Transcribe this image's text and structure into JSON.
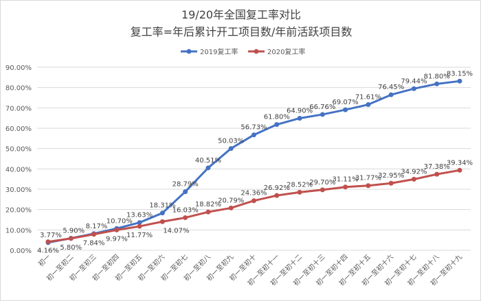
{
  "chart_data": {
    "type": "line",
    "title": "19/20年全国复工率对比",
    "subtitle": "复工率=年后累计开工项目数/年前活跃项目数",
    "xlabel": "",
    "ylabel": "",
    "ylim": [
      0,
      90
    ],
    "yticks": [
      "0.00%",
      "10.00%",
      "20.00%",
      "30.00%",
      "40.00%",
      "50.00%",
      "60.00%",
      "70.00%",
      "80.00%",
      "90.00%"
    ],
    "grid": true,
    "legend_position": "top",
    "categories": [
      "初一",
      "初一至初二",
      "初一至初三",
      "初一至初四",
      "初一至初五",
      "初一至初六",
      "初一至初七",
      "初一至初八",
      "初一至初九",
      "初一至初十",
      "初一至初十一",
      "初一至初十二",
      "初一至初十三",
      "初一至初十四",
      "初一至初十五",
      "初一至初十六",
      "初一至初十七",
      "初一至初十八",
      "初一至初十九"
    ],
    "series": [
      {
        "name": "2019复工率",
        "color": "#4472C4",
        "values": [
          3.77,
          5.9,
          8.17,
          10.7,
          13.63,
          18.31,
          28.79,
          40.51,
          50.03,
          56.73,
          61.8,
          64.9,
          66.76,
          69.07,
          71.61,
          76.45,
          79.44,
          81.8,
          83.15
        ]
      },
      {
        "name": "2020复工率",
        "color": "#C0504D",
        "values": [
          4.16,
          5.8,
          7.84,
          9.97,
          11.77,
          14.07,
          16.03,
          18.82,
          20.79,
          24.36,
          26.92,
          28.52,
          29.7,
          31.11,
          31.77,
          32.95,
          34.92,
          37.38,
          39.34
        ]
      }
    ]
  }
}
